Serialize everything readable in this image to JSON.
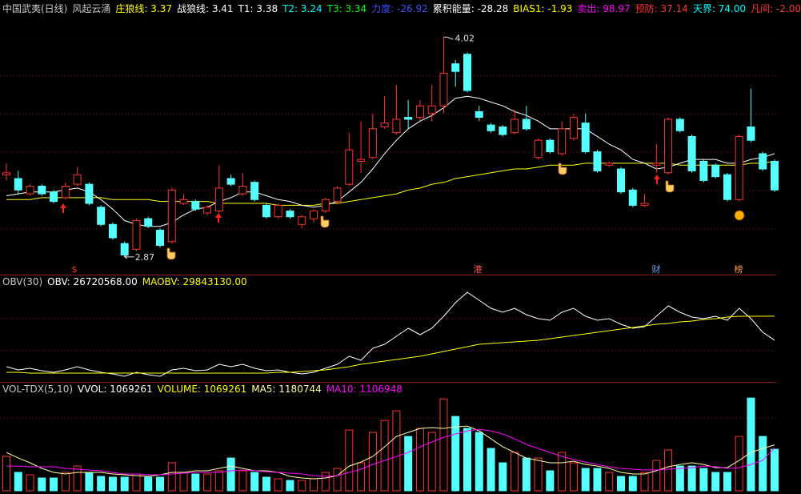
{
  "chart_data": [
    {
      "type": "candlestick",
      "title": "中国武夷(日线)",
      "subtitle": "风起云涌",
      "title_color": "#c8c8c8",
      "indicators": [
        {
          "text": "T1: 3.38",
          "color": "#ffffff"
        },
        {
          "text": "T2: 3.24",
          "color": "#00ffff"
        },
        {
          "text": "T3: 3.34",
          "color": "#00ff00"
        },
        {
          "text": "力度: -26.92",
          "color": "#3c50ff"
        },
        {
          "text": "累积能量: -28.28",
          "color": "#ffffff"
        },
        {
          "text": "BIAS1: -1.93",
          "color": "#ffff00"
        },
        {
          "text": "卖出: 98.97",
          "color": "#ff00ff"
        },
        {
          "text": "预防: 37.14",
          "color": "#ff3232"
        },
        {
          "text": "天界: 74.00",
          "color": "#00ffff"
        },
        {
          "text": "凡间: -2.00",
          "color": "#ff3232"
        }
      ],
      "markers": [
        "$",
        "港",
        "财",
        "榜"
      ],
      "up_color": "#ff3232",
      "down_color": "#54ffff",
      "ylim": [
        2.79,
        4.13
      ],
      "open": [
        3.3,
        3.28,
        3.2,
        3.24,
        3.21,
        3.18,
        3.25,
        3.25,
        3.13,
        3.04,
        2.94,
        2.91,
        3.07,
        3.01,
        2.95,
        3.15,
        3.16,
        3.1,
        3.11,
        3.28,
        3.2,
        3.26,
        3.14,
        3.08,
        3.11,
        3.04,
        3.07,
        3.11,
        3.16,
        3.25,
        3.37,
        3.39,
        3.55,
        3.52,
        3.6,
        3.6,
        3.62,
        3.66,
        3.88,
        3.93,
        3.63,
        3.56,
        3.55,
        3.52,
        3.59,
        3.39,
        3.48,
        3.41,
        3.49,
        3.57,
        3.42,
        3.35,
        3.33,
        3.22,
        3.14,
        3.35,
        3.31,
        3.59,
        3.5,
        3.37,
        3.35,
        3.3,
        3.17,
        3.55,
        3.41,
        3.37
      ],
      "high": [
        3.36,
        3.32,
        3.25,
        3.25,
        3.22,
        3.26,
        3.34,
        3.26,
        3.14,
        3.05,
        2.95,
        3.07,
        3.08,
        3.02,
        3.23,
        3.2,
        3.17,
        3.14,
        3.35,
        3.3,
        3.31,
        3.27,
        3.15,
        3.15,
        3.12,
        3.09,
        3.12,
        3.18,
        3.24,
        3.52,
        3.58,
        3.62,
        3.71,
        3.77,
        3.69,
        3.69,
        3.77,
        4.02,
        3.9,
        3.94,
        3.66,
        3.57,
        3.56,
        3.64,
        3.66,
        3.49,
        3.49,
        3.58,
        3.62,
        3.62,
        3.43,
        3.37,
        3.34,
        3.23,
        3.2,
        3.46,
        3.6,
        3.6,
        3.51,
        3.38,
        3.36,
        3.31,
        3.51,
        3.75,
        3.42,
        3.38
      ],
      "low": [
        3.27,
        3.2,
        3.19,
        3.19,
        3.15,
        3.17,
        3.24,
        3.14,
        3.03,
        2.96,
        2.87,
        2.9,
        3.02,
        2.92,
        2.94,
        3.14,
        3.11,
        3.09,
        3.1,
        3.24,
        3.19,
        3.16,
        3.07,
        3.07,
        3.07,
        3.02,
        3.05,
        3.1,
        3.15,
        3.24,
        3.31,
        3.38,
        3.54,
        3.51,
        3.54,
        3.58,
        3.58,
        3.62,
        3.76,
        3.73,
        3.58,
        3.52,
        3.5,
        3.51,
        3.53,
        3.38,
        3.41,
        3.4,
        3.48,
        3.41,
        3.31,
        3.34,
        3.2,
        3.13,
        3.13,
        3.31,
        3.3,
        3.52,
        3.31,
        3.26,
        3.28,
        3.16,
        3.16,
        3.47,
        3.32,
        3.21
      ],
      "close": [
        3.31,
        3.22,
        3.24,
        3.2,
        3.16,
        3.24,
        3.3,
        3.15,
        3.04,
        2.97,
        2.88,
        3.06,
        3.03,
        2.93,
        3.22,
        3.17,
        3.12,
        3.13,
        3.23,
        3.25,
        3.24,
        3.17,
        3.08,
        3.14,
        3.08,
        3.08,
        3.11,
        3.17,
        3.23,
        3.43,
        3.38,
        3.54,
        3.57,
        3.59,
        3.59,
        3.66,
        3.66,
        3.83,
        3.84,
        3.74,
        3.6,
        3.53,
        3.51,
        3.59,
        3.54,
        3.48,
        3.42,
        3.54,
        3.6,
        3.42,
        3.32,
        3.36,
        3.21,
        3.14,
        3.15,
        3.36,
        3.59,
        3.53,
        3.32,
        3.27,
        3.29,
        3.17,
        3.5,
        3.48,
        3.33,
        3.22
      ],
      "series": [
        {
          "name": "庄狼线: 3.37",
          "color": "#ffff00",
          "values": [
            3.17,
            3.17,
            3.17,
            3.18,
            3.18,
            3.18,
            3.18,
            3.18,
            3.18,
            3.17,
            3.17,
            3.17,
            3.17,
            3.16,
            3.16,
            3.16,
            3.16,
            3.16,
            3.15,
            3.15,
            3.15,
            3.15,
            3.15,
            3.14,
            3.14,
            3.14,
            3.14,
            3.15,
            3.15,
            3.16,
            3.17,
            3.18,
            3.19,
            3.2,
            3.22,
            3.23,
            3.25,
            3.26,
            3.28,
            3.29,
            3.3,
            3.31,
            3.32,
            3.33,
            3.33,
            3.34,
            3.35,
            3.35,
            3.35,
            3.36,
            3.36,
            3.36,
            3.36,
            3.36,
            3.36,
            3.36,
            3.36,
            3.35,
            3.35,
            3.35,
            3.35,
            3.35,
            3.35,
            3.36,
            3.36,
            3.37
          ]
        },
        {
          "name": "战狼线: 3.41",
          "color": "#ffffff",
          "values": [
            3.19,
            3.2,
            3.21,
            3.21,
            3.21,
            3.22,
            3.23,
            3.21,
            3.17,
            3.12,
            3.06,
            3.04,
            3.03,
            3.03,
            3.05,
            3.09,
            3.12,
            3.13,
            3.16,
            3.18,
            3.21,
            3.21,
            3.19,
            3.17,
            3.16,
            3.14,
            3.13,
            3.14,
            3.16,
            3.21,
            3.26,
            3.33,
            3.41,
            3.48,
            3.54,
            3.58,
            3.61,
            3.65,
            3.7,
            3.71,
            3.7,
            3.68,
            3.66,
            3.63,
            3.61,
            3.58,
            3.54,
            3.54,
            3.54,
            3.54,
            3.5,
            3.46,
            3.43,
            3.38,
            3.36,
            3.33,
            3.34,
            3.36,
            3.38,
            3.38,
            3.38,
            3.36,
            3.36,
            3.38,
            3.39,
            3.41
          ]
        }
      ]
    },
    {
      "type": "line",
      "title": "OBV(30)",
      "ylim": [
        21300000,
        35250000
      ],
      "series": [
        {
          "name": "OBV: 26720568.00",
          "color": "#ffffff",
          "values": [
            23280000,
            22860000,
            23070000,
            22760000,
            22550000,
            22860000,
            23280000,
            22860000,
            22550000,
            22340000,
            22030000,
            22550000,
            22240000,
            22030000,
            22860000,
            23070000,
            22760000,
            22860000,
            23590000,
            23280000,
            23590000,
            23070000,
            22760000,
            22860000,
            22550000,
            22340000,
            22550000,
            23070000,
            23590000,
            24630000,
            24110000,
            25670000,
            26190000,
            27230000,
            28280000,
            27440000,
            28280000,
            29840000,
            31610000,
            32960000,
            31920000,
            30880000,
            30360000,
            30880000,
            30040000,
            29520000,
            29320000,
            30360000,
            30880000,
            29840000,
            29320000,
            29520000,
            28800000,
            28280000,
            28480000,
            29840000,
            31190000,
            30360000,
            29730000,
            29520000,
            29840000,
            29320000,
            30880000,
            29520000,
            27750000,
            26720568
          ]
        },
        {
          "name": "MAOBV: 29843130.00",
          "color": "#ffff00",
          "values": [
            22550000,
            22550000,
            22450000,
            22450000,
            22450000,
            22450000,
            22450000,
            22450000,
            22450000,
            22450000,
            22450000,
            22450000,
            22450000,
            22450000,
            22450000,
            22450000,
            22450000,
            22450000,
            22450000,
            22450000,
            22450000,
            22450000,
            22450000,
            22550000,
            22550000,
            22650000,
            22760000,
            22860000,
            23070000,
            23280000,
            23590000,
            23800000,
            24010000,
            24220000,
            24420000,
            24630000,
            24940000,
            25260000,
            25570000,
            25880000,
            26190000,
            26300000,
            26400000,
            26510000,
            26610000,
            26710000,
            26920000,
            27130000,
            27340000,
            27550000,
            27750000,
            27960000,
            28170000,
            28380000,
            28590000,
            28800000,
            28900000,
            29110000,
            29210000,
            29420000,
            29520000,
            29730000,
            29840000,
            29840000,
            29840000,
            29843130
          ]
        }
      ]
    },
    {
      "type": "volume",
      "title": "VOL-TDX(5,10)",
      "indicators": [
        {
          "text": "VVOL: 1069261",
          "color": "#ffffff"
        }
      ],
      "up_color": "#ff3232",
      "down_color": "#54ffff",
      "ylim": [
        0,
        2800000
      ],
      "series": [
        {
          "name": "VOLUME: 1069261",
          "color": "#ffff00",
          "values": [
            884000,
            473000,
            411000,
            329000,
            329000,
            473000,
            637000,
            473000,
            370000,
            350000,
            350000,
            432000,
            350000,
            350000,
            720000,
            473000,
            432000,
            432000,
            514000,
            843000,
            514000,
            473000,
            350000,
            308000,
            267000,
            267000,
            308000,
            473000,
            576000,
            1563000,
            720000,
            1501000,
            1809000,
            2056000,
            1398000,
            1604000,
            1501000,
            2364000,
            1912000,
            1604000,
            1501000,
            1090000,
            720000,
            987000,
            843000,
            843000,
            514000,
            987000,
            720000,
            576000,
            576000,
            473000,
            370000,
            370000,
            473000,
            781000,
            1049000,
            637000,
            637000,
            576000,
            473000,
            473000,
            1398000,
            2385000,
            1398000,
            1069261
          ]
        },
        {
          "name": "MA5: 1180744",
          "color": "#ffffa0",
          "values": [
            987000,
            843000,
            720000,
            576000,
            473000,
            432000,
            473000,
            473000,
            473000,
            432000,
            411000,
            391000,
            370000,
            411000,
            473000,
            473000,
            514000,
            514000,
            576000,
            637000,
            576000,
            514000,
            514000,
            473000,
            370000,
            329000,
            308000,
            329000,
            391000,
            637000,
            740000,
            884000,
            1131000,
            1398000,
            1501000,
            1604000,
            1624000,
            1604000,
            1645000,
            1665000,
            1542000,
            1336000,
            1131000,
            987000,
            843000,
            781000,
            720000,
            720000,
            761000,
            678000,
            637000,
            576000,
            473000,
            432000,
            432000,
            514000,
            617000,
            678000,
            720000,
            678000,
            596000,
            596000,
            781000,
            987000,
            1090000,
            1180744
          ]
        },
        {
          "name": "MA10: 1106948",
          "color": "#ff00ff",
          "values": [
            637000,
            637000,
            617000,
            617000,
            617000,
            576000,
            555000,
            535000,
            514000,
            473000,
            432000,
            432000,
            411000,
            411000,
            432000,
            452000,
            473000,
            473000,
            473000,
            514000,
            535000,
            514000,
            493000,
            473000,
            452000,
            432000,
            391000,
            370000,
            391000,
            473000,
            555000,
            678000,
            781000,
            884000,
            987000,
            1131000,
            1254000,
            1378000,
            1460000,
            1542000,
            1583000,
            1542000,
            1460000,
            1336000,
            1192000,
            1090000,
            987000,
            884000,
            802000,
            740000,
            678000,
            617000,
            576000,
            555000,
            535000,
            535000,
            555000,
            576000,
            596000,
            637000,
            617000,
            576000,
            596000,
            678000,
            781000,
            1106948
          ]
        }
      ]
    }
  ]
}
